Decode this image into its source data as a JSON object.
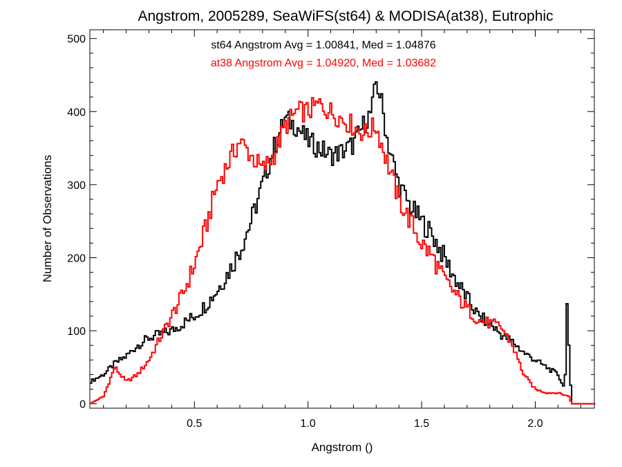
{
  "chart_data": {
    "type": "line",
    "title": "Angstrom, 2005289, SeaWiFS(st64) & MODISA(at38), Eutrophic",
    "xlabel": "Angstrom ()",
    "ylabel": "Number of Observations",
    "xlim": [
      0.04,
      2.26
    ],
    "ylim": [
      -6,
      512
    ],
    "xticks": [
      0.5,
      1.0,
      1.5,
      2.0
    ],
    "xtick_labels": [
      "0.5",
      "1.0",
      "1.5",
      "2.0"
    ],
    "yticks": [
      0,
      100,
      200,
      300,
      400,
      500
    ],
    "ytick_labels": [
      "0",
      "100",
      "200",
      "300",
      "400",
      "500"
    ],
    "annotations": [
      {
        "text": "st64 Angstrom Avg = 1.00841, Med = 1.04876",
        "color": "#000000"
      },
      {
        "text": "at38 Angstrom Avg = 1.04920, Med = 1.03682",
        "color": "#ff0000"
      }
    ],
    "series": [
      {
        "color": "#000000",
        "style": "step",
        "x": [
          0.04,
          0.1,
          0.15,
          0.2,
          0.25,
          0.3,
          0.35,
          0.4,
          0.45,
          0.5,
          0.55,
          0.6,
          0.65,
          0.7,
          0.75,
          0.8,
          0.85,
          0.9,
          0.95,
          1.0,
          1.05,
          1.1,
          1.15,
          1.2,
          1.25,
          1.28,
          1.3,
          1.32,
          1.35,
          1.4,
          1.45,
          1.5,
          1.55,
          1.6,
          1.65,
          1.7,
          1.75,
          1.8,
          1.85,
          1.9,
          1.95,
          2.0,
          2.05,
          2.1,
          2.13,
          2.14,
          2.15,
          2.16,
          2.18,
          2.26
        ],
        "y": [
          30,
          40,
          55,
          65,
          80,
          90,
          95,
          100,
          110,
          120,
          135,
          155,
          180,
          210,
          250,
          300,
          350,
          390,
          380,
          360,
          350,
          340,
          345,
          355,
          385,
          400,
          440,
          420,
          360,
          300,
          270,
          250,
          230,
          200,
          170,
          145,
          120,
          110,
          95,
          85,
          70,
          60,
          50,
          40,
          20,
          135,
          60,
          0,
          0,
          0
        ]
      },
      {
        "color": "#ff0000",
        "style": "step",
        "x": [
          0.04,
          0.1,
          0.15,
          0.2,
          0.25,
          0.3,
          0.35,
          0.4,
          0.45,
          0.5,
          0.55,
          0.6,
          0.65,
          0.7,
          0.75,
          0.8,
          0.85,
          0.9,
          0.95,
          1.0,
          1.05,
          1.1,
          1.15,
          1.2,
          1.25,
          1.3,
          1.35,
          1.4,
          1.45,
          1.5,
          1.55,
          1.6,
          1.65,
          1.7,
          1.75,
          1.8,
          1.85,
          1.9,
          1.95,
          2.0,
          2.05,
          2.1,
          2.15,
          2.16,
          2.26
        ],
        "y": [
          0,
          10,
          50,
          30,
          40,
          60,
          90,
          120,
          150,
          190,
          240,
          300,
          330,
          360,
          340,
          320,
          340,
          380,
          400,
          400,
          410,
          400,
          390,
          380,
          370,
          380,
          330,
          280,
          250,
          220,
          200,
          170,
          150,
          130,
          115,
          110,
          105,
          80,
          40,
          20,
          15,
          15,
          10,
          0,
          0
        ]
      }
    ]
  }
}
